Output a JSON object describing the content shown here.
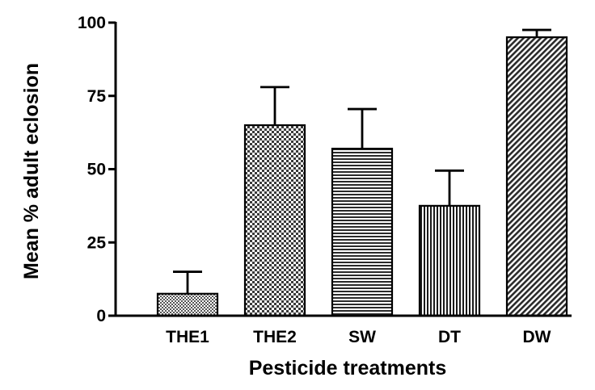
{
  "chart_data": {
    "type": "bar",
    "categories": [
      "THE1",
      "THE2",
      "SW",
      "DT",
      "DW"
    ],
    "values": [
      7.5,
      65,
      57,
      37.5,
      95
    ],
    "errors": [
      7.5,
      13,
      13.5,
      12,
      2.5
    ],
    "xlabel": "Pesticide treatments",
    "ylabel": "Mean % adult eclosion",
    "ylim": [
      0,
      100
    ],
    "yticks": [
      0,
      25,
      50,
      75,
      100
    ],
    "grid": false,
    "bar_patterns": [
      "fine-checker",
      "checker",
      "horizontal-lines",
      "vertical-lines",
      "diagonal-lines"
    ]
  }
}
